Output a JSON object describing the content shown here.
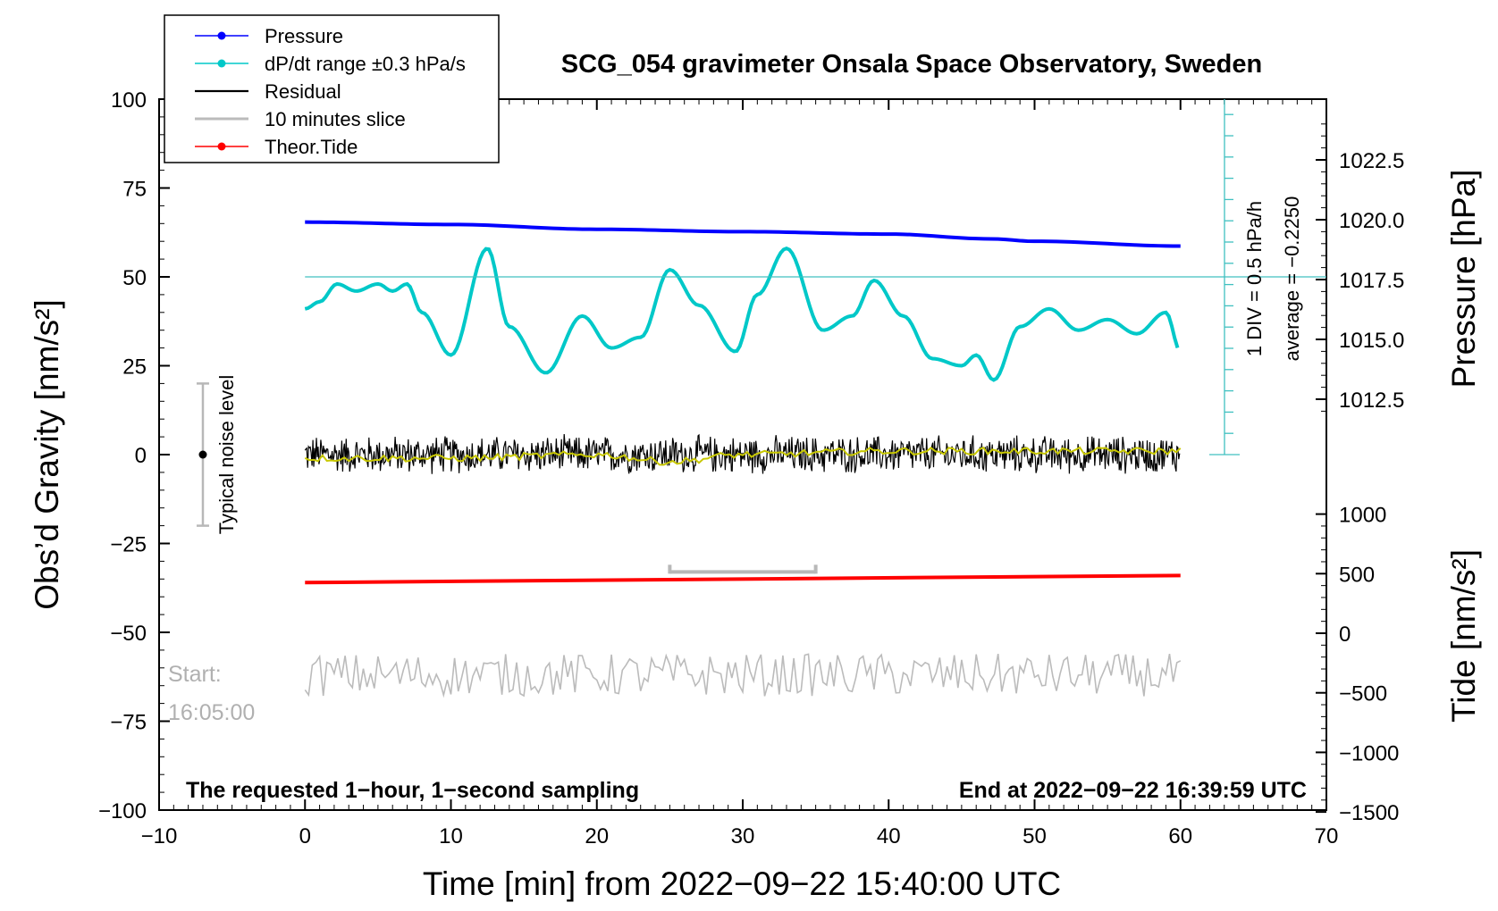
{
  "chart_data": {
    "type": "line",
    "title": "SCG_054 gravimeter Onsala Space Observatory, Sweden",
    "xlabel": "Time [min] from 2022−09−22 15:40:00 UTC",
    "ylabel_left": "Obs’d Gravity [nm/s²]",
    "ylabel_right_top": "Pressure [hPa]",
    "ylabel_right_bottom": "Tide [nm/s²]",
    "xlim": [
      -10,
      70
    ],
    "ylim": [
      -100,
      100
    ],
    "xticks": [
      "−10",
      "0",
      "10",
      "20",
      "30",
      "40",
      "50",
      "60",
      "70"
    ],
    "xtick_values": [
      -10,
      0,
      10,
      20,
      30,
      40,
      50,
      60,
      70
    ],
    "yticks_left": [
      "100",
      "75",
      "50",
      "25",
      "0",
      "−25",
      "−50",
      "−75",
      "−100"
    ],
    "ytick_values_left": [
      100,
      75,
      50,
      25,
      0,
      -25,
      -50,
      -75,
      -100
    ],
    "pressure_ticks": [
      "1022.5",
      "1020.0",
      "1017.5",
      "1015.0",
      "1012.5"
    ],
    "pressure_tick_values": [
      1022.5,
      1020.0,
      1017.5,
      1015.0,
      1012.5
    ],
    "tide_ticks": [
      "1000",
      "500",
      "0",
      "−500",
      "−1000",
      "−1500"
    ],
    "tide_tick_values": [
      1000,
      500,
      0,
      -500,
      -1000,
      -1500
    ],
    "legend": [
      {
        "label": "Pressure",
        "color": "#0000ff",
        "marker": true
      },
      {
        "label": "dP/dt range ±0.3 hPa/s",
        "color": "#00c8c8",
        "marker": true
      },
      {
        "label": "Residual",
        "color": "#000000",
        "marker": false
      },
      {
        "label": "10 minutes slice",
        "color": "#bbbbbb",
        "marker": false
      },
      {
        "label": "Theor.Tide",
        "color": "#ff0000",
        "marker": true
      }
    ],
    "series": [
      {
        "name": "Pressure (hPa)",
        "color": "#0000ff",
        "x": [
          0,
          10,
          20,
          30,
          40,
          47,
          50,
          60
        ],
        "values": [
          1019.9,
          1019.8,
          1019.6,
          1019.5,
          1019.4,
          1019.2,
          1019.1,
          1018.9
        ]
      },
      {
        "name": "dP/dt (plotted, nm/s² scale)",
        "color": "#00c8c8",
        "x": [
          0,
          1,
          2.2,
          3.5,
          5,
          6,
          7,
          8,
          10,
          12.5,
          14,
          16.5,
          19,
          21,
          23,
          25,
          27,
          29.5,
          31,
          33,
          35.5,
          37.5,
          39,
          41,
          43,
          45,
          46,
          47.2,
          49,
          51,
          53,
          55,
          57,
          59,
          60
        ],
        "values": [
          41,
          43,
          48,
          46,
          48,
          46,
          48,
          40,
          28,
          58,
          36,
          23,
          39,
          30,
          33,
          52,
          42,
          29,
          45,
          58,
          35,
          39,
          49,
          39,
          27,
          25,
          28,
          21,
          36,
          41,
          35,
          38,
          34,
          40,
          29
        ]
      },
      {
        "name": "Residual",
        "color": "#000000",
        "x": [
          0,
          60
        ],
        "values": [
          0,
          0
        ],
        "noise_amplitude": 5
      },
      {
        "name": "Residual (smoothed)",
        "color": "#c8c800",
        "x": [
          0,
          10,
          20,
          25,
          30,
          40,
          50,
          60
        ],
        "values": [
          -1,
          -1,
          0,
          -2,
          0,
          1,
          1,
          1
        ]
      },
      {
        "name": "Theor.Tide (plotted)",
        "color": "#ff0000",
        "x": [
          0,
          60
        ],
        "values": [
          -36,
          -34
        ]
      },
      {
        "name": "10 minutes slice",
        "color": "#bbbbbb",
        "x": [
          0,
          60
        ],
        "values": [
          -62,
          -62
        ],
        "noise_amplitude": 6
      }
    ],
    "slice_bracket": {
      "x_start": 25,
      "x_end": 35
    },
    "dpdt_reference": {
      "value": 50,
      "div_label": "1 DIV = 0.5 hPa/h",
      "average_label": "average = −0.2250"
    },
    "noise_label": "Typical noise level",
    "noise_range": [
      -20,
      20
    ],
    "start_label": "Start:",
    "start_time": "16:05:00",
    "bottom_left_note": "The requested 1−hour, 1−second sampling",
    "bottom_right_note": "End at 2022−09−22 16:39:59 UTC"
  }
}
